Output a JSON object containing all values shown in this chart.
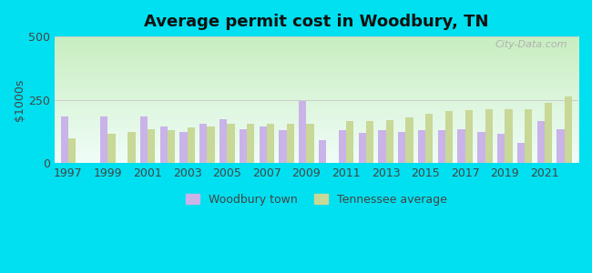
{
  "title": "Average permit cost in Woodbury, TN",
  "ylabel": "$1000s",
  "background_outer": "#00e0f0",
  "years": [
    1997,
    1998,
    1999,
    2000,
    2001,
    2002,
    2003,
    2004,
    2005,
    2006,
    2007,
    2008,
    2009,
    2010,
    2011,
    2012,
    2013,
    2014,
    2015,
    2016,
    2017,
    2018,
    2019,
    2020,
    2021,
    2022
  ],
  "woodbury": [
    185,
    0,
    185,
    0,
    185,
    145,
    125,
    155,
    175,
    135,
    145,
    130,
    245,
    90,
    130,
    120,
    130,
    125,
    130,
    130,
    135,
    125,
    115,
    80,
    165,
    135
  ],
  "tennessee": [
    100,
    0,
    115,
    125,
    135,
    130,
    140,
    145,
    155,
    155,
    155,
    155,
    155,
    0,
    165,
    165,
    170,
    180,
    195,
    205,
    210,
    215,
    215,
    215,
    240,
    265
  ],
  "woodbury_color": "#c9b3e8",
  "tennessee_color": "#c8d896",
  "ylim": [
    0,
    500
  ],
  "yticks": [
    0,
    250,
    500
  ],
  "watermark": "City-Data.com",
  "legend_labels": [
    "Woodbury town",
    "Tennessee average"
  ],
  "grad_top": "#c8eec0",
  "grad_bot": "#f0fdf8"
}
